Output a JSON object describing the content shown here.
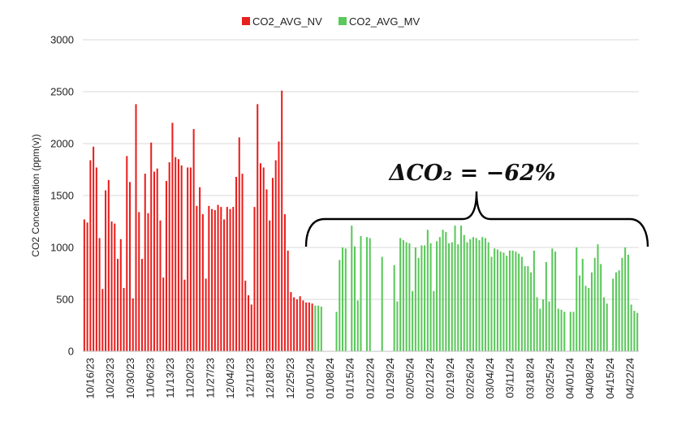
{
  "chart_data": {
    "type": "bar",
    "ylabel": "CO2 Concentration (ppm(v))",
    "ylim": [
      0,
      3000
    ],
    "yticks": [
      "0",
      "500",
      "1000",
      "1500",
      "2000",
      "2500",
      "3000"
    ],
    "grid": true,
    "legend_position": "top-center",
    "xtick_labels": [
      "10/16/23",
      "10/23/23",
      "10/30/23",
      "11/06/23",
      "11/13/23",
      "11/20/23",
      "11/27/23",
      "12/04/23",
      "12/11/23",
      "12/18/23",
      "12/25/23",
      "01/01/24",
      "01/08/24",
      "01/15/24",
      "01/22/24",
      "01/29/24",
      "02/05/24",
      "02/12/24",
      "02/19/24",
      "02/26/24",
      "03/04/24",
      "03/11/24",
      "03/18/24",
      "03/25/24",
      "04/01/24",
      "04/08/24",
      "04/15/24",
      "04/22/24"
    ],
    "annotation": "ΔCO₂ = −62%",
    "series": [
      {
        "name": "CO2_AVG_NV",
        "color": "#e8201e",
        "values": [
          1270,
          1240,
          1840,
          1970,
          1770,
          1090,
          600,
          1550,
          1650,
          1250,
          1230,
          890,
          1080,
          610,
          1880,
          1630,
          510,
          2380,
          1340,
          890,
          1710,
          1330,
          2010,
          1730,
          1760,
          1260,
          710,
          1640,
          1820,
          2200,
          1870,
          1850,
          1790,
          690,
          1770,
          1770,
          2140,
          1400,
          1580,
          1320,
          700,
          1400,
          1370,
          1360,
          1410,
          1390,
          1270,
          1390,
          1370,
          1390,
          1680,
          2060,
          1710,
          680,
          540,
          450,
          1390,
          2380,
          1810,
          1770,
          1560,
          1260,
          1670,
          1840,
          2020,
          2510,
          1320,
          970,
          570,
          520,
          500,
          530,
          490,
          470,
          470,
          460
        ]
      },
      {
        "name": "CO2_AVG_MV",
        "color": "#5ac85a",
        "values": [
          440,
          440,
          430,
          0,
          0,
          0,
          0,
          380,
          880,
          1000,
          990,
          0,
          1210,
          1010,
          490,
          1110,
          0,
          1100,
          1090,
          0,
          0,
          0,
          910,
          0,
          0,
          0,
          830,
          480,
          1090,
          1070,
          1050,
          1040,
          580,
          1000,
          900,
          1020,
          1020,
          1170,
          1040,
          580,
          1060,
          1100,
          1170,
          1150,
          1040,
          1050,
          1210,
          1030,
          1210,
          1120,
          1050,
          1080,
          1100,
          1090,
          1070,
          1100,
          1090,
          1050,
          910,
          990,
          980,
          960,
          950,
          920,
          970,
          970,
          960,
          940,
          910,
          820,
          820,
          760,
          970,
          520,
          410,
          500,
          860,
          480,
          990,
          960,
          410,
          400,
          380,
          0,
          380,
          380,
          1000,
          730,
          890,
          630,
          610,
          760,
          900,
          1030,
          840,
          520,
          460,
          0,
          700,
          760,
          780,
          900,
          1000,
          930,
          450,
          390,
          370
        ]
      }
    ]
  }
}
